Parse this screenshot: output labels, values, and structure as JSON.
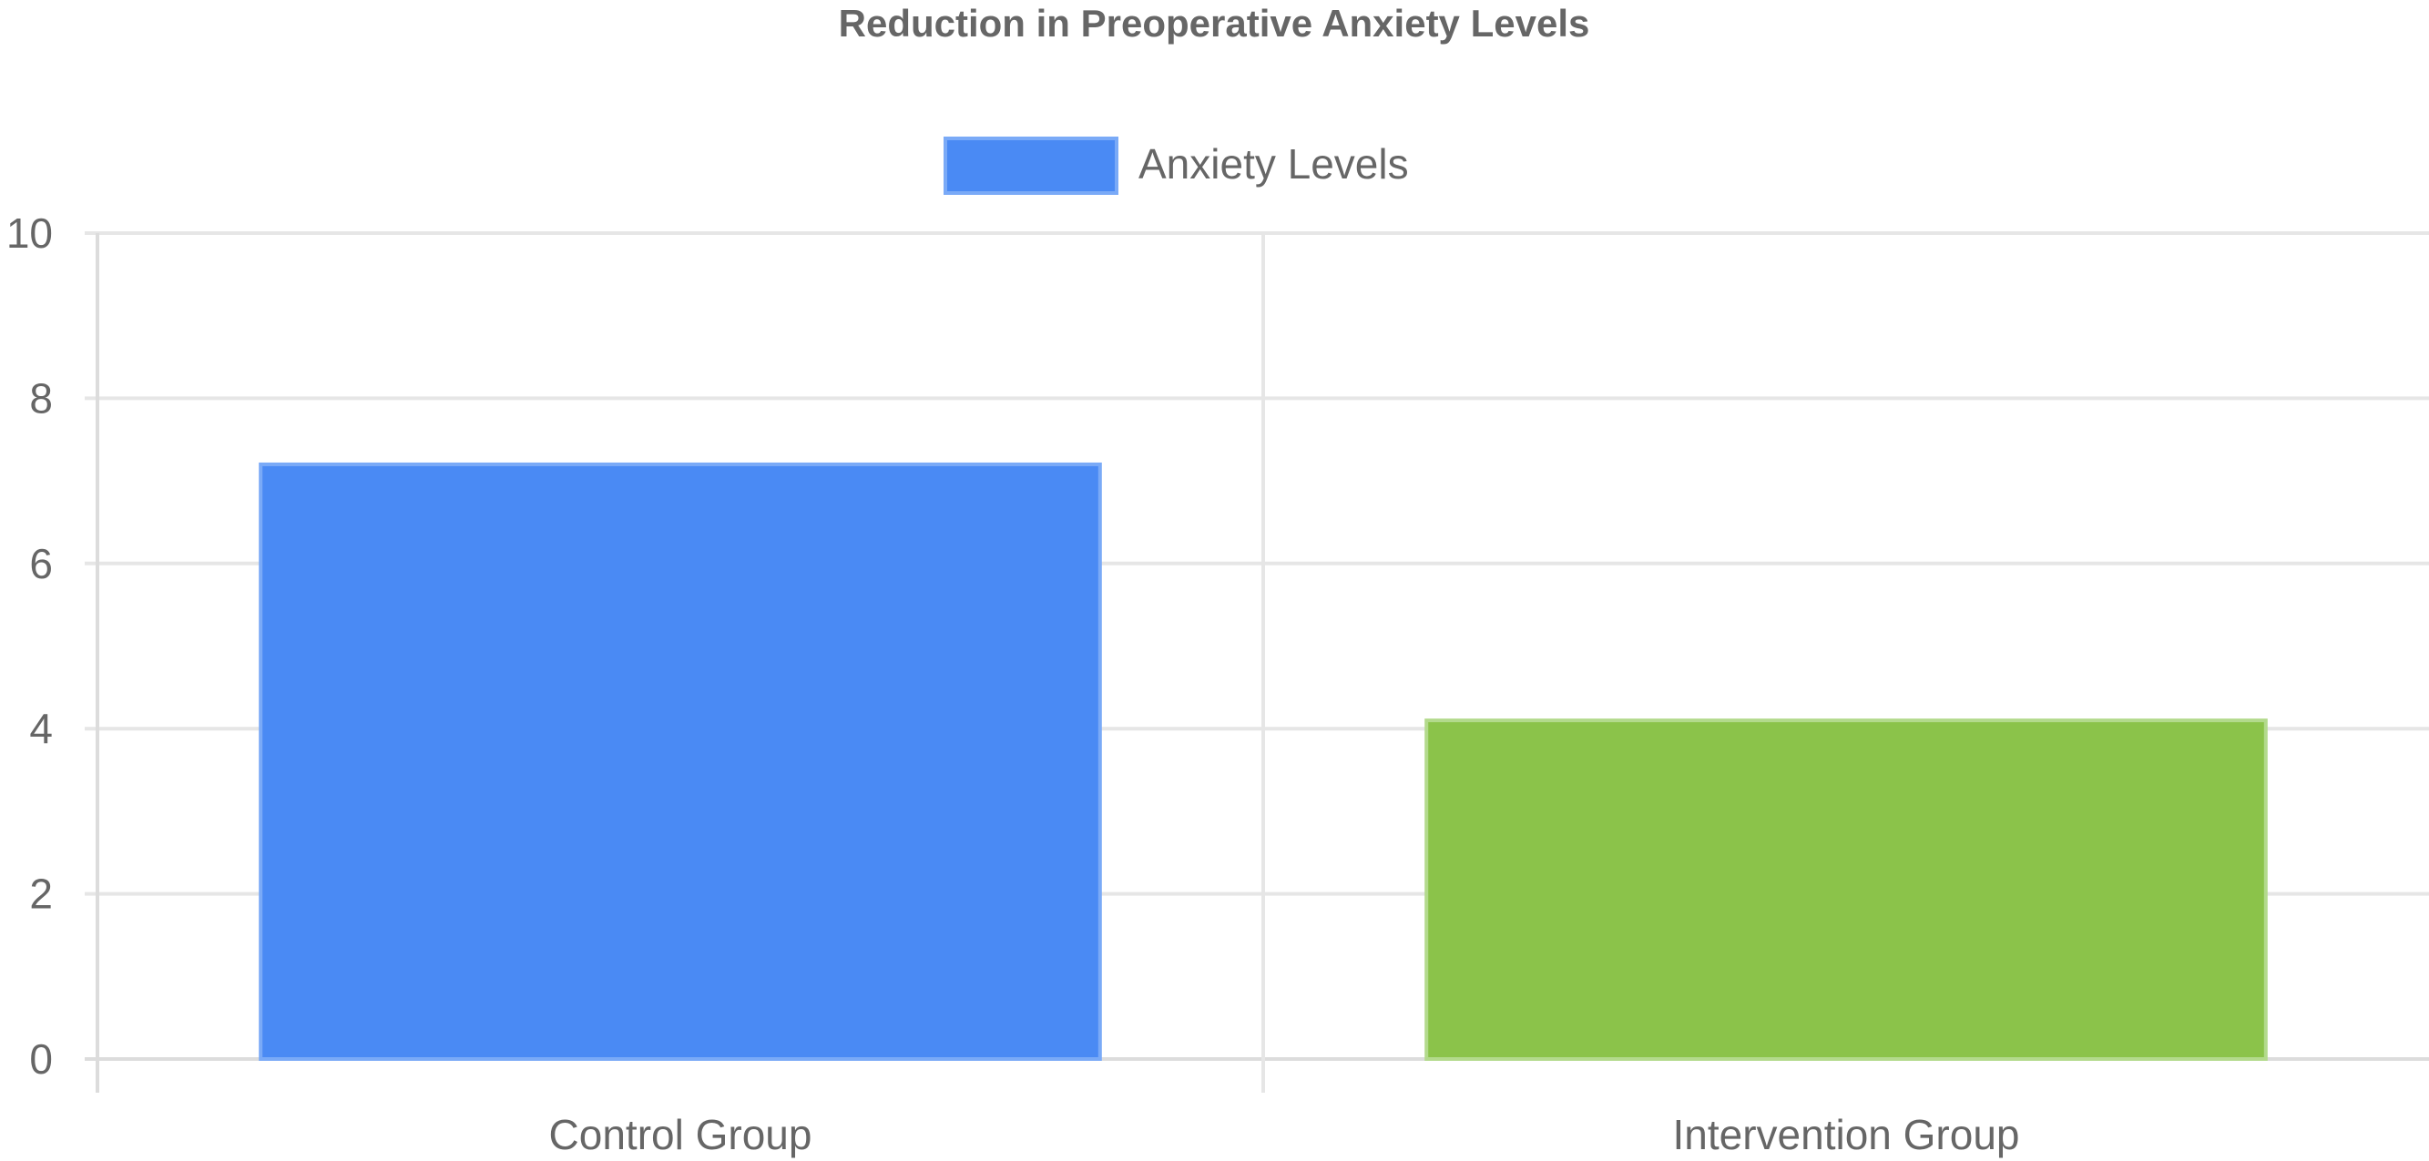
{
  "chart_data": {
    "type": "bar",
    "title": "Reduction in Preoperative Anxiety Levels",
    "categories": [
      "Control Group",
      "Intervention Group"
    ],
    "series": [
      {
        "name": "Anxiety Levels",
        "values": [
          7.2,
          4.1
        ],
        "colors": [
          "#4a8af4",
          "#8bc34a"
        ],
        "border_colors": [
          "#7aaaf7",
          "#b3da8c"
        ]
      }
    ],
    "ylim": [
      0,
      10
    ],
    "yticks": [
      0,
      2,
      4,
      6,
      8,
      10
    ],
    "xlabel": "",
    "ylabel": "",
    "grid": true,
    "legend_position": "top"
  }
}
